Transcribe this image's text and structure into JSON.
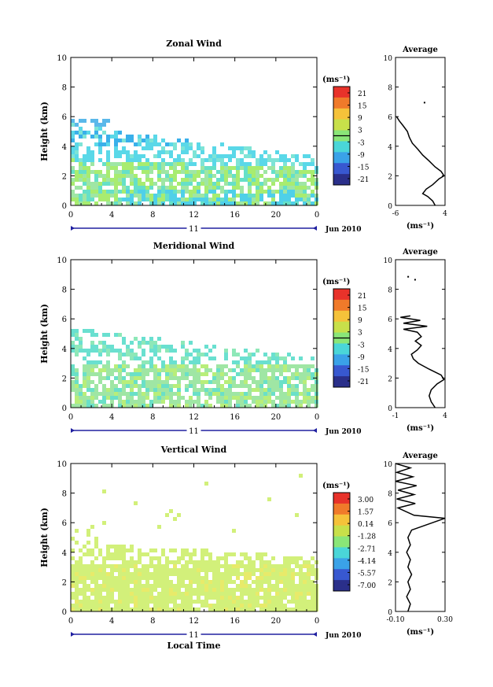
{
  "chart_data": [
    {
      "type": "heatmap",
      "title": "Zonal Wind",
      "ylabel": "Height (km)",
      "xlim": [
        0,
        24
      ],
      "ylim": [
        0,
        10
      ],
      "xticks": [
        "0",
        "4",
        "8",
        "12",
        "16",
        "20",
        "0"
      ],
      "yticks": [
        "0",
        "2",
        "4",
        "6",
        "8",
        "10"
      ],
      "date_label": "11",
      "month_label": "Jun 2010",
      "colorbar": {
        "unit": "(ms⁻¹)",
        "ticks": [
          "21",
          "15",
          "9",
          "3",
          "-3",
          "-9",
          "-15",
          "-21"
        ],
        "zero_line": true
      },
      "average": {
        "title": "Average",
        "unit": "(ms⁻¹)",
        "xticks": [
          "-6",
          "4"
        ],
        "xlim": [
          -6,
          4
        ],
        "profile": [
          [
            2,
            0
          ],
          [
            1.5,
            0.3
          ],
          [
            0.5,
            0.6
          ],
          [
            -0.5,
            0.8
          ],
          [
            0.2,
            1.1
          ],
          [
            1.5,
            1.4
          ],
          [
            2.8,
            1.8
          ],
          [
            3.8,
            2.0
          ],
          [
            3.2,
            2.3
          ],
          [
            2.0,
            2.6
          ],
          [
            0.8,
            3.0
          ],
          [
            -0.5,
            3.4
          ],
          [
            -1.5,
            3.8
          ],
          [
            -2.6,
            4.2
          ],
          [
            -3.2,
            4.6
          ],
          [
            -3.6,
            5.0
          ],
          [
            -4.5,
            5.4
          ],
          [
            -5.2,
            5.7
          ],
          [
            -5.8,
            6.0
          ]
        ],
        "dots": [
          [
            -0.3,
            7.0
          ]
        ]
      }
    },
    {
      "type": "heatmap",
      "title": "Meridional Wind",
      "ylabel": "Height (km)",
      "xlim": [
        0,
        24
      ],
      "ylim": [
        0,
        10
      ],
      "xticks": [
        "0",
        "4",
        "8",
        "12",
        "16",
        "20",
        "0"
      ],
      "yticks": [
        "0",
        "2",
        "4",
        "6",
        "8",
        "10"
      ],
      "date_label": "11",
      "month_label": "Jun 2010",
      "colorbar": {
        "unit": "(ms⁻¹)",
        "ticks": [
          "21",
          "15",
          "9",
          "3",
          "-3",
          "-9",
          "-15",
          "-21"
        ],
        "zero_line": true
      },
      "average": {
        "title": "Average",
        "unit": "(ms⁻¹)",
        "xticks": [
          "-1",
          "4"
        ],
        "xlim": [
          -1,
          4
        ],
        "profile": [
          [
            3,
            0
          ],
          [
            2.6,
            0.4
          ],
          [
            2.4,
            0.8
          ],
          [
            2.6,
            1.2
          ],
          [
            3.2,
            1.6
          ],
          [
            3.9,
            1.9
          ],
          [
            3.6,
            2.2
          ],
          [
            2.4,
            2.6
          ],
          [
            1.3,
            3.0
          ],
          [
            0.8,
            3.3
          ],
          [
            0.6,
            3.6
          ],
          [
            1.2,
            3.9
          ],
          [
            1.6,
            4.2
          ],
          [
            1.0,
            4.5
          ],
          [
            1.6,
            4.8
          ],
          [
            1.2,
            5.1
          ],
          [
            -0.2,
            5.3
          ],
          [
            2.2,
            5.5
          ],
          [
            -0.2,
            5.7
          ],
          [
            1.5,
            5.9
          ],
          [
            -0.5,
            6.1
          ],
          [
            0.5,
            6.2
          ]
        ],
        "dots": [
          [
            0.2,
            8.9
          ],
          [
            0.9,
            8.7
          ]
        ]
      }
    },
    {
      "type": "heatmap",
      "title": "Vertical Wind",
      "ylabel": "Height (km)",
      "xlabel": "Local Time",
      "xlim": [
        0,
        24
      ],
      "ylim": [
        0,
        10
      ],
      "xticks": [
        "0",
        "4",
        "8",
        "12",
        "16",
        "20",
        "0"
      ],
      "yticks": [
        "0",
        "2",
        "4",
        "6",
        "8",
        "10"
      ],
      "date_label": "11",
      "month_label": "Jun 2010",
      "colorbar": {
        "unit": "(ms⁻¹)",
        "ticks": [
          "3.00",
          "1.57",
          "0.14",
          "-1.28",
          "-2.71",
          "-4.14",
          "-5.57",
          "-7.00"
        ],
        "zero_line": false
      },
      "average": {
        "title": "Average",
        "unit": "(ms⁻¹)",
        "xticks": [
          "-0.10",
          "0.30"
        ],
        "xlim": [
          -0.1,
          0.3
        ],
        "profile": [
          [
            0.0,
            0
          ],
          [
            0.02,
            0.5
          ],
          [
            -0.01,
            1.0
          ],
          [
            0.02,
            1.5
          ],
          [
            0.0,
            2.0
          ],
          [
            0.03,
            2.5
          ],
          [
            0.0,
            3.0
          ],
          [
            0.02,
            3.5
          ],
          [
            -0.01,
            4.0
          ],
          [
            0.02,
            4.5
          ],
          [
            0.0,
            5.0
          ],
          [
            0.03,
            5.5
          ],
          [
            0.3,
            6.3
          ],
          [
            0.05,
            6.5
          ],
          [
            -0.08,
            7.0
          ],
          [
            0.06,
            7.3
          ],
          [
            -0.09,
            7.6
          ],
          [
            0.05,
            7.9
          ],
          [
            -0.08,
            8.2
          ],
          [
            0.07,
            8.5
          ],
          [
            -0.1,
            8.8
          ],
          [
            0.04,
            9.1
          ],
          [
            -0.09,
            9.4
          ],
          [
            0.02,
            9.7
          ],
          [
            -0.1,
            10
          ]
        ],
        "dots": []
      }
    }
  ]
}
